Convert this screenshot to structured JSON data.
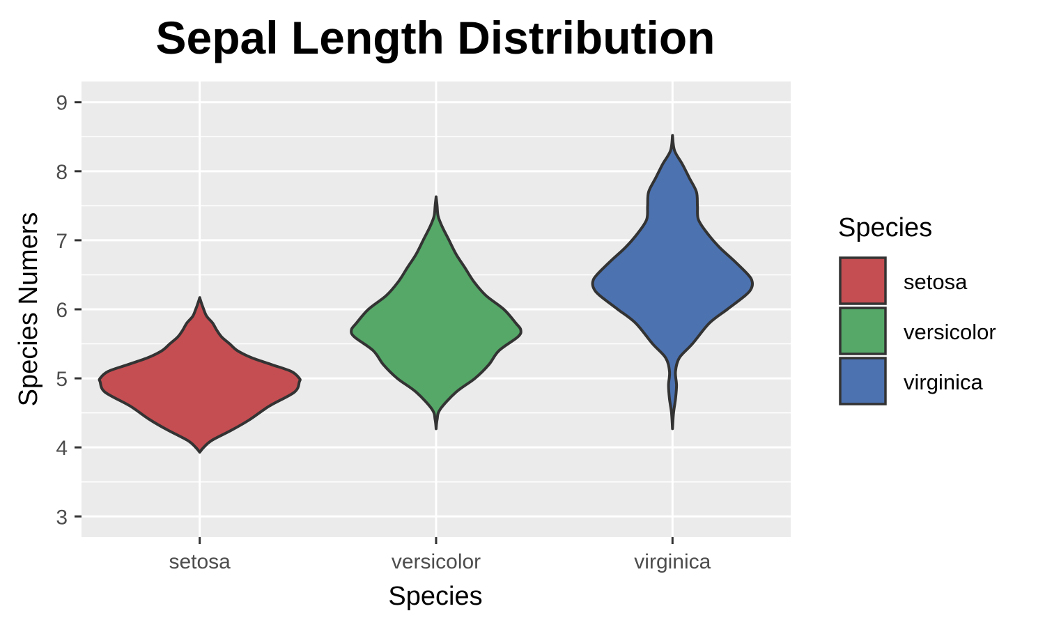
{
  "chart_data": {
    "type": "violin",
    "title": "Sepal Length Distribution",
    "xlabel": "Species",
    "ylabel": "Species Numers",
    "categories": [
      "setosa",
      "versicolor",
      "virginica"
    ],
    "yticks": [
      3,
      4,
      5,
      6,
      7,
      8,
      9
    ],
    "ylim": [
      2.7,
      9.3
    ],
    "grid": true,
    "legend": {
      "title": "Species",
      "position": "right"
    },
    "series": [
      {
        "name": "setosa",
        "color": "#c44e52",
        "density": [
          [
            3.93,
            0.0
          ],
          [
            4.0,
            0.04
          ],
          [
            4.1,
            0.12
          ],
          [
            4.25,
            0.32
          ],
          [
            4.4,
            0.5
          ],
          [
            4.6,
            0.7
          ],
          [
            4.8,
            0.95
          ],
          [
            4.95,
            1.0
          ],
          [
            5.0,
            1.0
          ],
          [
            5.1,
            0.92
          ],
          [
            5.2,
            0.72
          ],
          [
            5.3,
            0.52
          ],
          [
            5.4,
            0.38
          ],
          [
            5.5,
            0.3
          ],
          [
            5.6,
            0.22
          ],
          [
            5.7,
            0.17
          ],
          [
            5.8,
            0.13
          ],
          [
            5.9,
            0.07
          ],
          [
            6.0,
            0.04
          ],
          [
            6.1,
            0.015
          ],
          [
            6.17,
            0.0
          ]
        ]
      },
      {
        "name": "versicolor",
        "color": "#55a868",
        "density": [
          [
            4.27,
            0.0
          ],
          [
            4.4,
            0.01
          ],
          [
            4.55,
            0.04
          ],
          [
            4.8,
            0.2
          ],
          [
            5.0,
            0.39
          ],
          [
            5.2,
            0.53
          ],
          [
            5.4,
            0.63
          ],
          [
            5.6,
            0.82
          ],
          [
            5.7,
            0.85
          ],
          [
            5.8,
            0.8
          ],
          [
            6.0,
            0.68
          ],
          [
            6.2,
            0.5
          ],
          [
            6.4,
            0.38
          ],
          [
            6.6,
            0.29
          ],
          [
            6.8,
            0.2
          ],
          [
            7.0,
            0.13
          ],
          [
            7.2,
            0.06
          ],
          [
            7.35,
            0.02
          ],
          [
            7.5,
            0.01
          ],
          [
            7.63,
            0.0
          ]
        ]
      },
      {
        "name": "virginica",
        "color": "#4c72b0",
        "density": [
          [
            4.27,
            0.0
          ],
          [
            4.5,
            0.01
          ],
          [
            4.7,
            0.03
          ],
          [
            4.9,
            0.04
          ],
          [
            5.1,
            0.03
          ],
          [
            5.3,
            0.07
          ],
          [
            5.5,
            0.2
          ],
          [
            5.8,
            0.37
          ],
          [
            6.0,
            0.55
          ],
          [
            6.2,
            0.73
          ],
          [
            6.3,
            0.79
          ],
          [
            6.4,
            0.8
          ],
          [
            6.5,
            0.76
          ],
          [
            6.7,
            0.62
          ],
          [
            6.9,
            0.47
          ],
          [
            7.1,
            0.35
          ],
          [
            7.3,
            0.26
          ],
          [
            7.5,
            0.25
          ],
          [
            7.7,
            0.24
          ],
          [
            7.9,
            0.17
          ],
          [
            8.1,
            0.1
          ],
          [
            8.3,
            0.02
          ],
          [
            8.52,
            0.0
          ]
        ]
      }
    ]
  }
}
